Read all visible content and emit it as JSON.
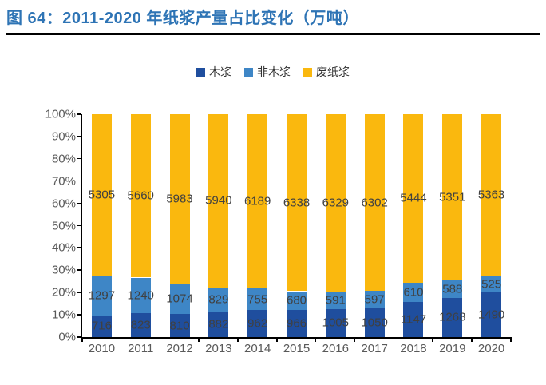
{
  "figure": {
    "title": "图 64：2011-2020 年纸浆产量占比变化（万吨）"
  },
  "chart_data": {
    "type": "bar",
    "stacked": true,
    "stacking": "percent",
    "title": "2011-2020 年纸浆产量占比变化（万吨）",
    "categories": [
      "2010",
      "2011",
      "2012",
      "2013",
      "2014",
      "2015",
      "2016",
      "2017",
      "2018",
      "2019",
      "2020"
    ],
    "series": [
      {
        "name": "木浆",
        "color": "#1F4E9E",
        "values": [
          716,
          823,
          810,
          882,
          962,
          966,
          1005,
          1050,
          1147,
          1268,
          1490
        ]
      },
      {
        "name": "非木浆",
        "color": "#3E86C6",
        "values": [
          1297,
          1240,
          1074,
          829,
          755,
          680,
          591,
          597,
          610,
          588,
          525
        ]
      },
      {
        "name": "废纸浆",
        "color": "#FAB80E",
        "values": [
          5305,
          5660,
          5983,
          5940,
          6189,
          6338,
          6329,
          6302,
          5444,
          5351,
          5363
        ]
      }
    ],
    "y_axis": {
      "min": 0,
      "max": 100,
      "unit": "%",
      "tick_step": 10,
      "ticks": [
        "0%",
        "10%",
        "20%",
        "30%",
        "40%",
        "50%",
        "60%",
        "70%",
        "80%",
        "90%",
        "100%"
      ]
    },
    "legend_position": "top",
    "grid": false,
    "value_label_color": "#404040",
    "axis_label_color": "#595959",
    "title_color": "#2E74B5"
  }
}
